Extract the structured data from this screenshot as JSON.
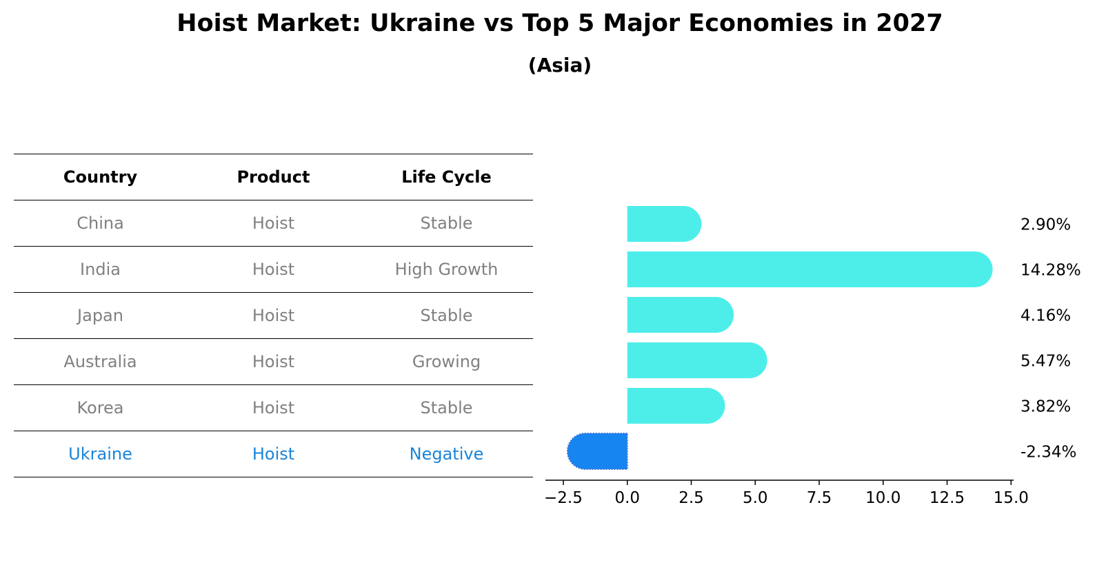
{
  "header": {
    "title": "Hoist Market: Ukraine vs Top 5 Major Economies in 2027",
    "subtitle": "(Asia)"
  },
  "table": {
    "columns": [
      "Country",
      "Product",
      "Life Cycle"
    ],
    "rows": [
      [
        "China",
        "Hoist",
        "Stable"
      ],
      [
        "India",
        "Hoist",
        "High Growth"
      ],
      [
        "Japan",
        "Hoist",
        "Stable"
      ],
      [
        "Australia",
        "Hoist",
        "Growing"
      ],
      [
        "Korea",
        "Hoist",
        "Stable"
      ],
      [
        "Ukraine",
        "Hoist",
        "Negative"
      ]
    ],
    "highlight_row": "Ukraine"
  },
  "chart_data": {
    "type": "bar",
    "orientation": "horizontal",
    "categories": [
      "China",
      "India",
      "Japan",
      "Australia",
      "Korea",
      "Ukraine"
    ],
    "values": [
      2.9,
      14.28,
      4.16,
      5.47,
      3.82,
      -2.34
    ],
    "value_labels": [
      "2.90%",
      "14.28%",
      "4.16%",
      "5.47%",
      "3.82%",
      "-2.34%"
    ],
    "xlim": [
      -3.2,
      15.1
    ],
    "xticks": [
      -2.5,
      0.0,
      2.5,
      5.0,
      7.5,
      10.0,
      12.5,
      15.0
    ],
    "xtick_labels": [
      "−2.5",
      "0.0",
      "2.5",
      "5.0",
      "7.5",
      "10.0",
      "12.5",
      "15.0"
    ],
    "colors": {
      "positive": "#4deeea",
      "negative": "#1785f0"
    },
    "grid": false
  }
}
